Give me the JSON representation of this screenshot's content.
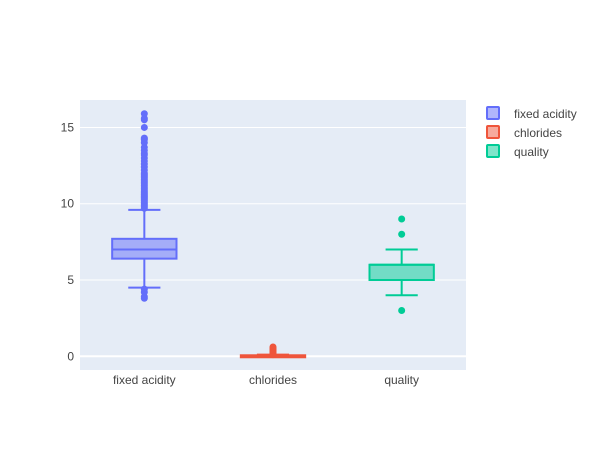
{
  "chart_data": {
    "type": "box",
    "title": "",
    "xlabel": "",
    "ylabel": "",
    "ylim": [
      -0.9,
      16.8
    ],
    "y_ticks": [
      0,
      5,
      10,
      15
    ],
    "y_tick_labels": [
      "0",
      "5",
      "10",
      "15"
    ],
    "grid": true,
    "legend_position": "top-right",
    "categories": [
      "fixed acidity",
      "chlorides",
      "quality"
    ],
    "series": [
      {
        "name": "fixed acidity",
        "color": "#636efa",
        "min": 4.5,
        "q1": 6.4,
        "median": 7.0,
        "q3": 7.7,
        "max": 9.6,
        "outliers": [
          3.8,
          3.9,
          4.2,
          4.4,
          9.7,
          9.8,
          9.9,
          10.0,
          10.1,
          10.2,
          10.3,
          10.4,
          10.5,
          10.6,
          10.7,
          10.8,
          10.9,
          11.0,
          11.1,
          11.2,
          11.3,
          11.4,
          11.5,
          11.6,
          11.7,
          11.8,
          11.9,
          12.0,
          12.2,
          12.4,
          12.6,
          12.8,
          13.0,
          13.2,
          13.3,
          13.5,
          13.7,
          14.0,
          14.2,
          14.3,
          15.0,
          15.5,
          15.6,
          15.9
        ]
      },
      {
        "name": "chlorides",
        "color": "#ef553b",
        "min": 0.009,
        "q1": 0.038,
        "median": 0.047,
        "q3": 0.065,
        "max": 0.105,
        "outliers": [
          0.11,
          0.13,
          0.15,
          0.2,
          0.25,
          0.3,
          0.35,
          0.4,
          0.45,
          0.5,
          0.55,
          0.61
        ]
      },
      {
        "name": "quality",
        "color": "#00cc96",
        "min": 4,
        "q1": 5,
        "median": 6,
        "q3": 6,
        "max": 7,
        "outliers": [
          3,
          8,
          9
        ]
      }
    ]
  }
}
